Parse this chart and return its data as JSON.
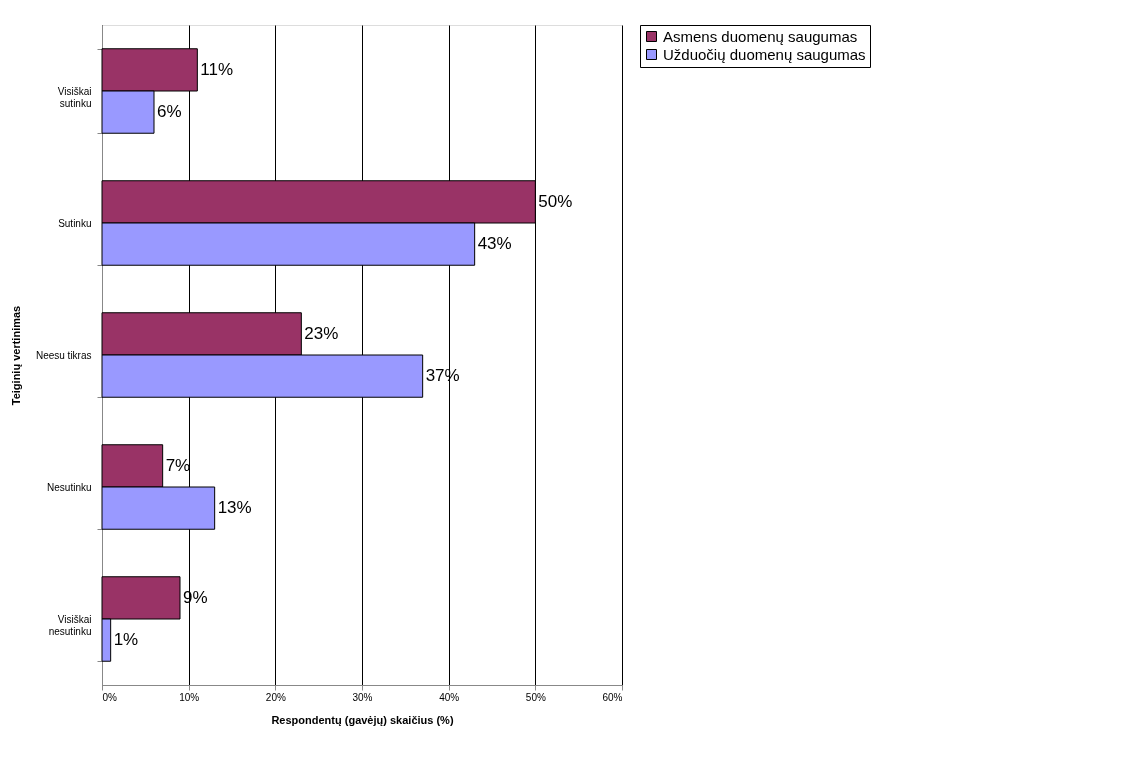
{
  "chart_data": {
    "type": "bar",
    "orientation": "horizontal",
    "xlabel": "Respondentų (gavėjų) skaičius (%)",
    "ylabel": "Teiginių vertinimas",
    "categories": [
      "Visiškai sutinku",
      "Sutinku",
      "Neesu tikras",
      "Nesutinku",
      "Visiškai nesutinku"
    ],
    "series": [
      {
        "name": "Asmens duomenų saugumas",
        "color": "#993366",
        "values": [
          11,
          50,
          23,
          7,
          9
        ],
        "value_labels": [
          "11%",
          "50%",
          "23%",
          "7%",
          "9%"
        ]
      },
      {
        "name": "Užduočių duomenų saugumas",
        "color": "#9999ff",
        "values": [
          6,
          43,
          37,
          13,
          1
        ],
        "value_labels": [
          "6%",
          "43%",
          "37%",
          "13%",
          "1%"
        ]
      }
    ],
    "xlim": [
      0,
      60
    ],
    "xticks": [
      {
        "value": 0,
        "label": "0%"
      },
      {
        "value": 10,
        "label": "10%"
      },
      {
        "value": 20,
        "label": "20%"
      },
      {
        "value": 30,
        "label": "30%"
      },
      {
        "value": 40,
        "label": "40%"
      },
      {
        "value": 50,
        "label": "50%"
      },
      {
        "value": 60,
        "label": "60%"
      }
    ],
    "grid": "x",
    "legend": "right"
  }
}
